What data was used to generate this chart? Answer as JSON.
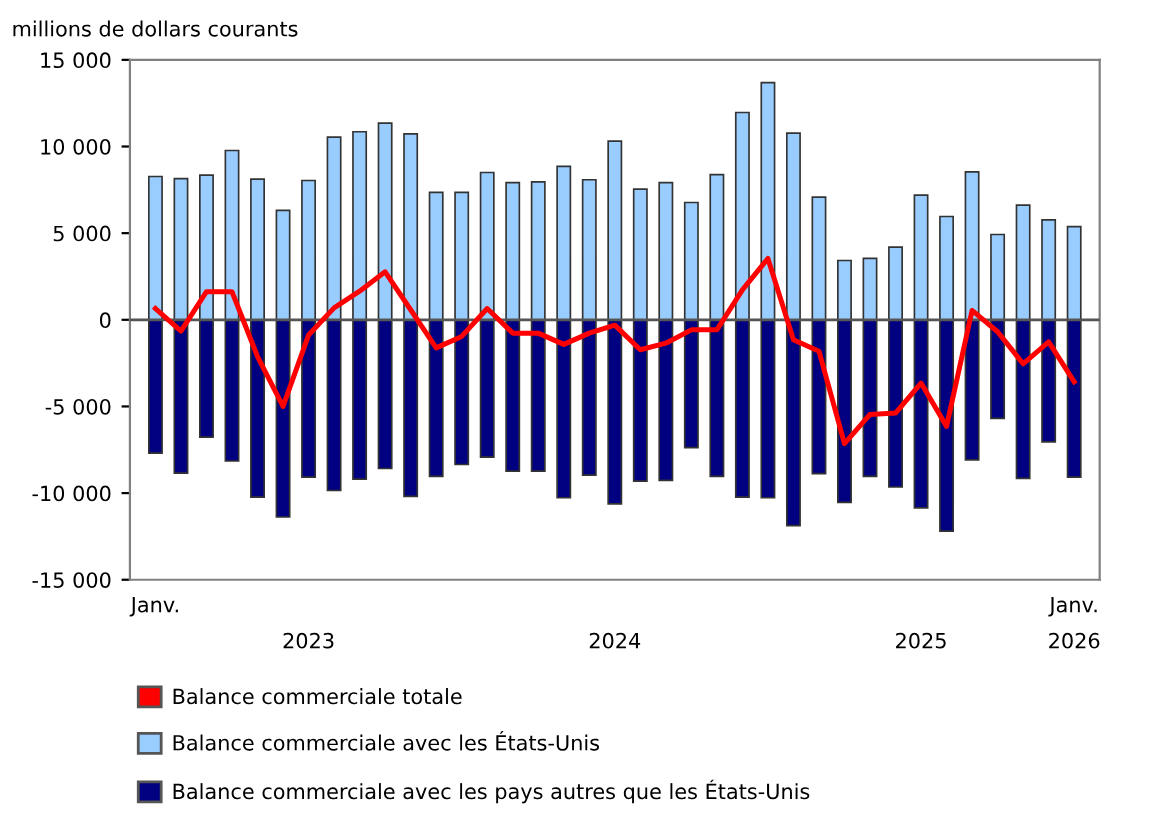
{
  "chart_data": {
    "type": "bar",
    "stacked": true,
    "ylabel": "millions de dollars courants",
    "categories": [
      "Janv.",
      null,
      null,
      null,
      null,
      null,
      "\n2023",
      null,
      null,
      null,
      null,
      null,
      null,
      null,
      null,
      null,
      null,
      null,
      "\n2024",
      null,
      null,
      null,
      null,
      null,
      null,
      null,
      null,
      null,
      null,
      null,
      "\n2025",
      null,
      null,
      null,
      null,
      null,
      "Janv.\n2026"
    ],
    "series": [
      {
        "name": "Balance commerciale totale",
        "type": "line",
        "color": "#ff0000",
        "values": [
          650,
          -650,
          1620,
          1620,
          -2120,
          -5000,
          -880,
          690,
          1650,
          2770,
          580,
          -1620,
          -960,
          650,
          -770,
          -770,
          -1420,
          -770,
          -310,
          -1730,
          -1350,
          -580,
          -580,
          1730,
          3540,
          -1150,
          -1810,
          -7150,
          -5460,
          -5380,
          -3650,
          -6150,
          540,
          -690,
          -2540,
          -1270,
          -3580
        ]
      },
      {
        "name": "Balance commerciale avec les États-Unis",
        "color": "#99ccff",
        "values": [
          8270,
          8150,
          8350,
          9770,
          8120,
          6310,
          8040,
          10540,
          10850,
          11350,
          10730,
          7350,
          7350,
          8500,
          7920,
          7960,
          8850,
          8080,
          10310,
          7540,
          7920,
          6770,
          8380,
          11960,
          13690,
          10770,
          7080,
          3420,
          3540,
          4190,
          7190,
          5960,
          8540,
          4920,
          6620,
          5770,
          5380
        ]
      },
      {
        "name": "Balance commerciale avec les pays autres que les États-Unis",
        "color": "#000080",
        "values": [
          -7690,
          -8850,
          -6770,
          -8150,
          -10230,
          -11380,
          -9080,
          -9850,
          -9190,
          -8580,
          -10190,
          -9040,
          -8350,
          -7920,
          -8730,
          -8730,
          -10270,
          -8960,
          -10620,
          -9310,
          -9270,
          -7380,
          -9040,
          -10230,
          -10270,
          -11880,
          -8880,
          -10540,
          -9040,
          -9650,
          -10850,
          -12190,
          -8080,
          -5690,
          -9150,
          -7040,
          -9080
        ]
      }
    ],
    "ylim": [
      -15000,
      15000
    ],
    "yticks": [
      {
        "value": -15000,
        "label": "-15 000"
      },
      {
        "value": -10000,
        "label": "-10 000"
      },
      {
        "value": -5000,
        "label": "-5 000"
      },
      0,
      {
        "value": 5000,
        "label": "5 000"
      },
      {
        "value": 10000,
        "label": "10 000"
      },
      {
        "value": 15000,
        "label": "15 000"
      }
    ],
    "ref_lines": [
      {
        "axis": "y",
        "value": 0,
        "color": "#555555"
      }
    ],
    "grid": false,
    "legend": "bottom"
  }
}
